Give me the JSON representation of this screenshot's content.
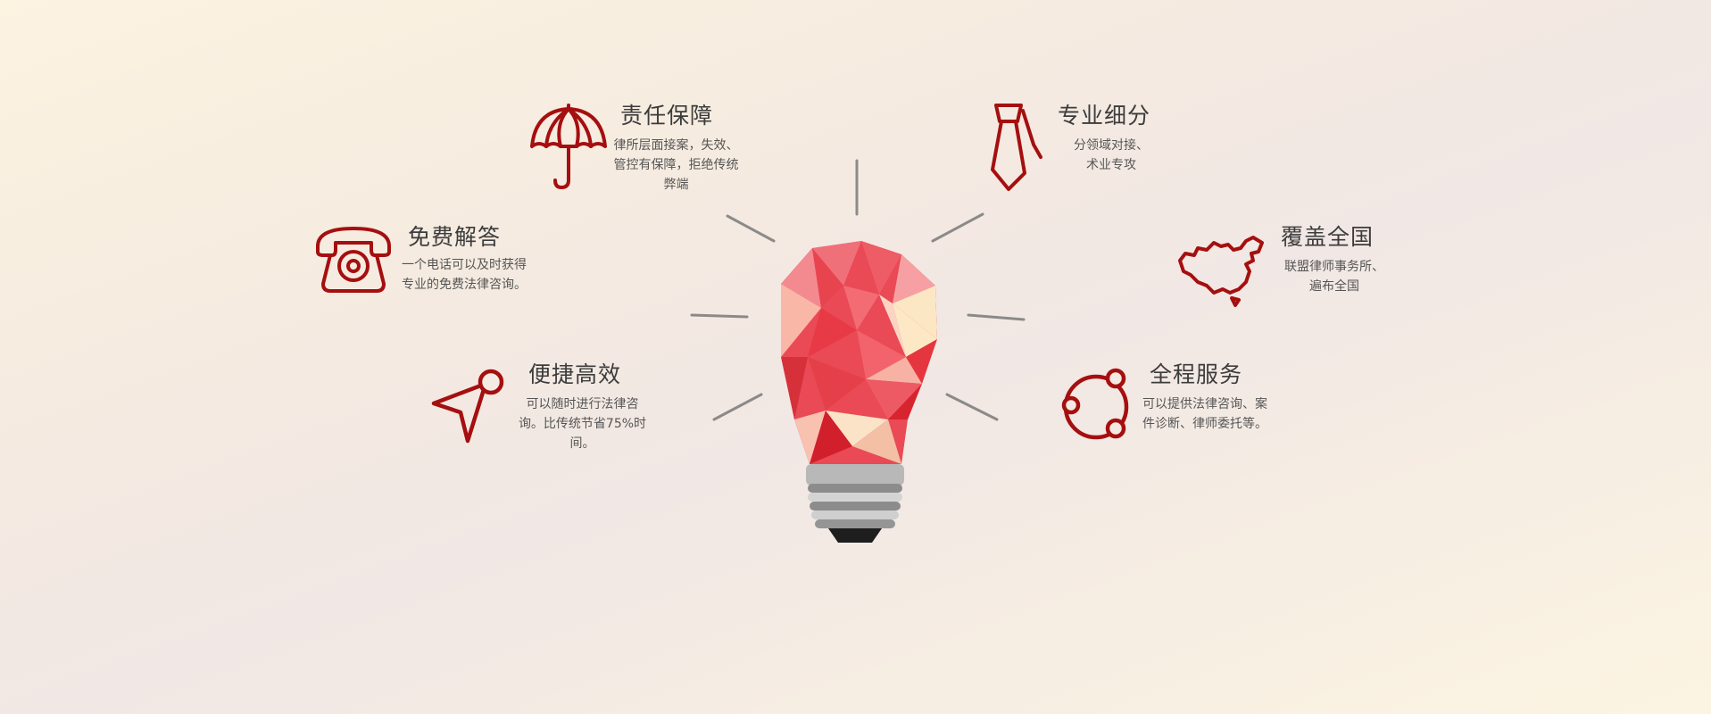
{
  "accent_color": "#a50f0f",
  "features": {
    "responsibility": {
      "icon": "umbrella-icon",
      "title": "责任保障",
      "desc": "律所层面接案，失效、\n管控有保障，拒绝传统\n弊端"
    },
    "specialization": {
      "icon": "necktie-icon",
      "title": "专业细分",
      "desc": "分领域对接、\n术业专攻"
    },
    "free_answer": {
      "icon": "telephone-icon",
      "title": "免费解答",
      "desc": "一个电话可以及时获得\n专业的免费法律咨询。"
    },
    "nationwide": {
      "icon": "china-map-icon",
      "title": "覆盖全国",
      "desc": "联盟律师事务所、\n遍布全国"
    },
    "efficient": {
      "icon": "cursor-arrow-icon",
      "title": "便捷高效",
      "desc": "可以随时进行法律咨\n询。比传统节省75%时\n间。"
    },
    "full_service": {
      "icon": "share-nodes-icon",
      "title": "全程服务",
      "desc": "可以提供法律咨询、案\n件诊断、律师委托等。"
    }
  }
}
